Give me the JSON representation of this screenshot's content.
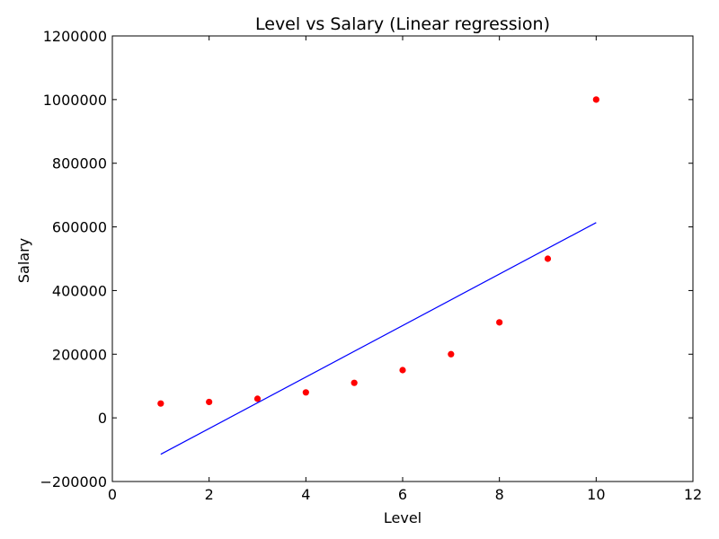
{
  "chart_data": {
    "type": "scatter",
    "title": "Level vs Salary (Linear regression)",
    "xlabel": "Level",
    "ylabel": "Salary",
    "xlim": [
      0,
      12
    ],
    "ylim": [
      -200000,
      1200000
    ],
    "x_ticks": [
      0,
      2,
      4,
      6,
      8,
      10,
      12
    ],
    "y_ticks": [
      -200000,
      0,
      200000,
      400000,
      600000,
      800000,
      1000000,
      1200000
    ],
    "x_tick_labels": [
      "0",
      "2",
      "4",
      "6",
      "8",
      "10",
      "12"
    ],
    "y_tick_labels": [
      "−200000",
      "0",
      "200000",
      "400000",
      "600000",
      "800000",
      "1000000",
      "1200000"
    ],
    "grid": false,
    "series": [
      {
        "type": "scatter",
        "color": "#ff0000",
        "x": [
          1,
          2,
          3,
          4,
          5,
          6,
          7,
          8,
          9,
          10
        ],
        "y": [
          45000,
          50000,
          60000,
          80000,
          110000,
          150000,
          200000,
          300000,
          500000,
          1000000
        ]
      },
      {
        "type": "line",
        "color": "#0000ff",
        "x": [
          1,
          10
        ],
        "y": [
          -114455,
          613455
        ]
      }
    ]
  }
}
